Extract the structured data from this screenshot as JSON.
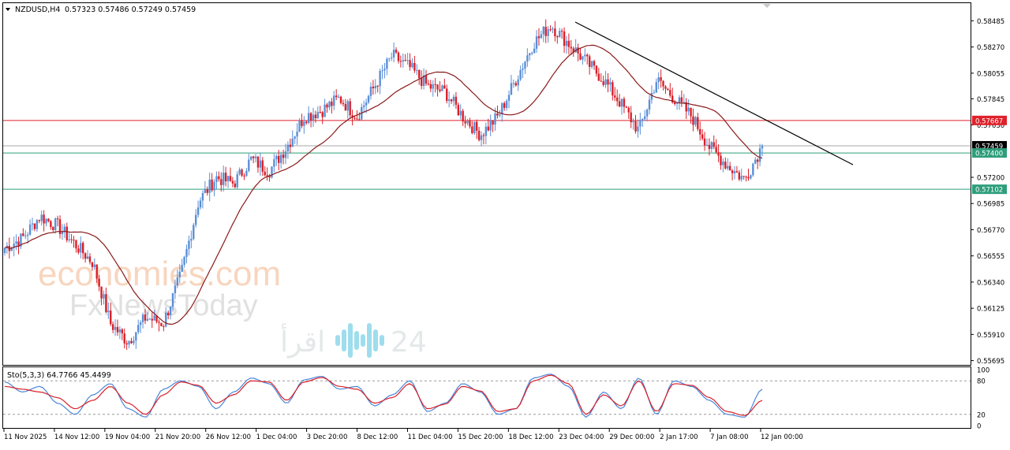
{
  "chart_header": {
    "symbol": "NZDUSD,H4",
    "ohlc": "0.57323 0.57486 0.57249 0.57459"
  },
  "stoch_header": {
    "label": "Sto(5,3,3) 64.7766 45.4499"
  },
  "price_axis": {
    "ticks": [
      "0.58485",
      "0.58270",
      "0.58055",
      "0.57845",
      "0.57630",
      "0.57200",
      "0.56985",
      "0.56770",
      "0.56555",
      "0.56340",
      "0.56125",
      "0.55910",
      "0.55695"
    ]
  },
  "price_labels": [
    {
      "text": "0.57667",
      "color": "#e0202a"
    },
    {
      "text": "0.57459",
      "color": "#000000"
    },
    {
      "text": "0.57400",
      "color": "#2e9e7a"
    },
    {
      "text": "0.57102",
      "color": "#2e9e7a"
    }
  ],
  "stoch_axis": {
    "ticks": [
      "100",
      "80",
      "20",
      "0"
    ]
  },
  "time_axis": {
    "labels": [
      "11 Nov 2025",
      "14 Nov 12:00",
      "19 Nov 04:00",
      "21 Nov 20:00",
      "26 Nov 12:00",
      "1 Dec 04:00",
      "3 Dec 20:00",
      "8 Dec 12:00",
      "11 Dec 04:00",
      "15 Dec 20:00",
      "18 Dec 12:00",
      "23 Dec 04:00",
      "29 Dec 00:00",
      "2 Jan 17:00",
      "7 Jan 08:00",
      "12 Jan 00:00"
    ]
  },
  "watermarks": {
    "line1": "economies.com",
    "line2": "FxNewsToday",
    "line3_arabic": "اقرأ",
    "line3_num": "24"
  },
  "chart_data": [
    {
      "type": "candlestick",
      "title": "NZDUSD,H4",
      "ylim": [
        0.5566,
        0.5863
      ],
      "x_range": [
        "11 Nov 2025",
        "12 Jan 2026"
      ],
      "legend": "none",
      "grid": false,
      "colors": {
        "bull": "#5b8fd6",
        "bear": "#d8202a",
        "ma": "#8b1a1a",
        "trendline": "#000000"
      },
      "levels": [
        {
          "value": 0.57667,
          "color": "#e0202a"
        },
        {
          "value": 0.57459,
          "color": "#aaaaaa"
        },
        {
          "value": 0.574,
          "color": "#2e9e7a"
        },
        {
          "value": 0.57102,
          "color": "#2e9e7a"
        }
      ],
      "trendline": {
        "from": [
          "23 Dec 04:00",
          0.585
        ],
        "to": [
          "12 Jan 18:00",
          0.5735
        ]
      },
      "series": [
        {
          "x": "11 Nov 2025",
          "y": 0.5662
        },
        {
          "x": "12 Nov",
          "y": 0.567
        },
        {
          "x": "13 Nov",
          "y": 0.5688
        },
        {
          "x": "14 Nov 12:00",
          "y": 0.568
        },
        {
          "x": "17 Nov",
          "y": 0.5665
        },
        {
          "x": "18 Nov",
          "y": 0.565
        },
        {
          "x": "19 Nov 04:00",
          "y": 0.56
        },
        {
          "x": "19 Nov 20:00",
          "y": 0.5585
        },
        {
          "x": "20 Nov",
          "y": 0.5605
        },
        {
          "x": "21 Nov 20:00",
          "y": 0.56
        },
        {
          "x": "24 Nov",
          "y": 0.564
        },
        {
          "x": "25 Nov",
          "y": 0.57
        },
        {
          "x": "26 Nov 12:00",
          "y": 0.572
        },
        {
          "x": "27 Nov",
          "y": 0.5715
        },
        {
          "x": "28 Nov",
          "y": 0.5735
        },
        {
          "x": "1 Dec 04:00",
          "y": 0.5725
        },
        {
          "x": "2 Dec",
          "y": 0.5745
        },
        {
          "x": "3 Dec 20:00",
          "y": 0.577
        },
        {
          "x": "4 Dec",
          "y": 0.5775
        },
        {
          "x": "5 Dec",
          "y": 0.5785
        },
        {
          "x": "8 Dec 12:00",
          "y": 0.577
        },
        {
          "x": "9 Dec",
          "y": 0.5795
        },
        {
          "x": "10 Dec",
          "y": 0.582
        },
        {
          "x": "11 Dec 04:00",
          "y": 0.581
        },
        {
          "x": "12 Dec",
          "y": 0.5795
        },
        {
          "x": "15 Dec 20:00",
          "y": 0.579
        },
        {
          "x": "16 Dec",
          "y": 0.577
        },
        {
          "x": "17 Dec",
          "y": 0.5755
        },
        {
          "x": "18 Dec 12:00",
          "y": 0.577
        },
        {
          "x": "19 Dec",
          "y": 0.58
        },
        {
          "x": "22 Dec",
          "y": 0.583
        },
        {
          "x": "23 Dec 04:00",
          "y": 0.5845
        },
        {
          "x": "24 Dec",
          "y": 0.583
        },
        {
          "x": "26 Dec",
          "y": 0.5815
        },
        {
          "x": "29 Dec 00:00",
          "y": 0.58
        },
        {
          "x": "30 Dec",
          "y": 0.578
        },
        {
          "x": "31 Dec",
          "y": 0.5758
        },
        {
          "x": "2 Jan 17:00",
          "y": 0.58
        },
        {
          "x": "5 Jan",
          "y": 0.5785
        },
        {
          "x": "6 Jan",
          "y": 0.577
        },
        {
          "x": "7 Jan 08:00",
          "y": 0.5745
        },
        {
          "x": "8 Jan",
          "y": 0.573
        },
        {
          "x": "9 Jan",
          "y": 0.5718
        },
        {
          "x": "12 Jan 00:00",
          "y": 0.5746
        }
      ]
    },
    {
      "type": "line",
      "title": "Sto(5,3,3) 64.7766 45.4499",
      "ylim": [
        0,
        100
      ],
      "levels": [
        20,
        80
      ],
      "series": [
        {
          "name": "%K",
          "color": "#4a86d8",
          "values": [
            78,
            60,
            70,
            40,
            20,
            55,
            75,
            30,
            15,
            65,
            80,
            70,
            30,
            60,
            85,
            75,
            40,
            82,
            88,
            65,
            70,
            35,
            55,
            80,
            25,
            40,
            75,
            60,
            20,
            30,
            85,
            92,
            70,
            15,
            60,
            30,
            85,
            20,
            80,
            70,
            45,
            20,
            15,
            65
          ]
        },
        {
          "name": "%D",
          "color": "#d8202a",
          "values": [
            70,
            65,
            60,
            50,
            30,
            45,
            70,
            40,
            20,
            55,
            78,
            72,
            40,
            55,
            80,
            78,
            45,
            78,
            86,
            70,
            65,
            40,
            50,
            75,
            30,
            38,
            70,
            62,
            25,
            30,
            80,
            90,
            75,
            20,
            55,
            35,
            80,
            25,
            75,
            72,
            50,
            25,
            18,
            45
          ]
        }
      ]
    }
  ]
}
